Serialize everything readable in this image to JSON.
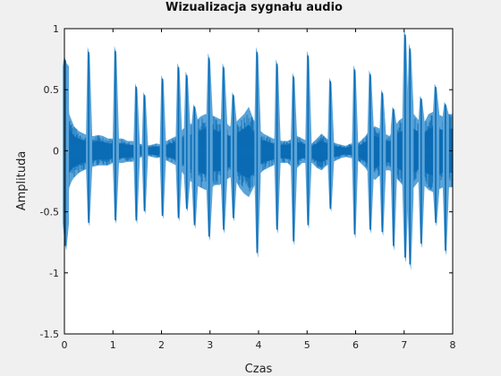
{
  "chart_data": {
    "type": "line",
    "title": "Wizualizacja sygnału audio",
    "xlabel": "Czas",
    "ylabel": "Amplituda",
    "xlim": [
      0,
      8
    ],
    "ylim": [
      -1.5,
      1
    ],
    "x_ticks": [
      "0",
      "1",
      "2",
      "3",
      "4",
      "5",
      "6",
      "7",
      "8"
    ],
    "y_ticks": [
      "1",
      "0.5",
      "0",
      "-0.5",
      "-1",
      "-1.5"
    ],
    "grid": false,
    "legend": "none",
    "colors": {
      "plot_background": "#ffffff",
      "page_background": "#f0f0f0",
      "signal_dark": "#0a6cb5",
      "signal_light": "#5aa3d8",
      "axes": "#000000"
    },
    "series": [
      {
        "envelope": {
          "x": [
            0.0,
            0.05,
            0.1,
            0.15,
            0.2,
            0.3,
            0.4,
            0.5,
            0.6,
            0.7,
            0.8,
            0.9,
            1.0,
            1.1,
            1.2,
            1.3,
            1.4,
            1.5,
            1.6,
            1.7,
            1.8,
            1.9,
            2.0,
            2.1,
            2.2,
            2.3,
            2.4,
            2.5,
            2.6,
            2.7,
            2.8,
            2.9,
            3.0,
            3.1,
            3.2,
            3.3,
            3.4,
            3.5,
            3.6,
            3.7,
            3.8,
            3.9,
            4.0,
            4.1,
            4.2,
            4.3,
            4.4,
            4.5,
            4.6,
            4.7,
            4.8,
            4.9,
            5.0,
            5.1,
            5.2,
            5.3,
            5.4,
            5.5,
            5.6,
            5.7,
            5.8,
            5.9,
            6.0,
            6.1,
            6.2,
            6.3,
            6.4,
            6.5,
            6.6,
            6.7,
            6.8,
            6.9,
            7.0,
            7.1,
            7.2,
            7.3,
            7.4,
            7.5,
            7.6,
            7.7,
            7.8,
            7.9,
            8.0
          ],
          "max": [
            0.75,
            0.6,
            0.3,
            0.25,
            0.2,
            0.16,
            0.14,
            0.12,
            0.12,
            0.13,
            0.12,
            0.1,
            0.1,
            0.1,
            0.1,
            0.08,
            0.08,
            0.07,
            0.05,
            0.04,
            0.05,
            0.06,
            0.05,
            0.08,
            0.1,
            0.12,
            0.16,
            0.2,
            0.22,
            0.24,
            0.28,
            0.3,
            0.3,
            0.28,
            0.26,
            0.25,
            0.2,
            0.22,
            0.26,
            0.3,
            0.36,
            0.25,
            0.18,
            0.14,
            0.12,
            0.1,
            0.09,
            0.08,
            0.08,
            0.1,
            0.12,
            0.1,
            0.08,
            0.06,
            0.1,
            0.14,
            0.1,
            0.08,
            0.06,
            0.05,
            0.04,
            0.06,
            0.05,
            0.08,
            0.12,
            0.18,
            0.2,
            0.18,
            0.14,
            0.12,
            0.2,
            0.25,
            0.28,
            0.35,
            0.3,
            0.25,
            0.22,
            0.3,
            0.32,
            0.3,
            0.28,
            0.3,
            0.3
          ],
          "min": [
            -0.65,
            -0.5,
            -0.3,
            -0.25,
            -0.22,
            -0.18,
            -0.16,
            -0.14,
            -0.13,
            -0.12,
            -0.12,
            -0.12,
            -0.1,
            -0.1,
            -0.1,
            -0.09,
            -0.09,
            -0.07,
            -0.05,
            -0.04,
            -0.05,
            -0.06,
            -0.05,
            -0.08,
            -0.1,
            -0.12,
            -0.16,
            -0.22,
            -0.25,
            -0.28,
            -0.3,
            -0.32,
            -0.32,
            -0.28,
            -0.28,
            -0.25,
            -0.22,
            -0.22,
            -0.3,
            -0.35,
            -0.38,
            -0.3,
            -0.2,
            -0.16,
            -0.14,
            -0.12,
            -0.1,
            -0.1,
            -0.1,
            -0.14,
            -0.14,
            -0.1,
            -0.1,
            -0.1,
            -0.14,
            -0.16,
            -0.12,
            -0.1,
            -0.08,
            -0.06,
            -0.05,
            -0.06,
            -0.06,
            -0.1,
            -0.14,
            -0.2,
            -0.24,
            -0.2,
            -0.16,
            -0.16,
            -0.2,
            -0.25,
            -0.3,
            -0.38,
            -0.3,
            -0.25,
            -0.28,
            -0.32,
            -0.34,
            -0.32,
            -0.3,
            -0.3,
            -0.3
          ]
        },
        "peaks": [
          {
            "x": 0.02,
            "max": 0.78,
            "min": -0.82
          },
          {
            "x": 0.5,
            "max": 0.85,
            "min": -0.62
          },
          {
            "x": 1.05,
            "max": 0.86,
            "min": -0.6
          },
          {
            "x": 1.48,
            "max": 0.55,
            "min": -0.6
          },
          {
            "x": 1.65,
            "max": 0.48,
            "min": -0.52
          },
          {
            "x": 2.02,
            "max": 0.62,
            "min": -0.56
          },
          {
            "x": 2.35,
            "max": 0.72,
            "min": -0.58
          },
          {
            "x": 2.52,
            "max": 0.65,
            "min": -0.5
          },
          {
            "x": 2.68,
            "max": 0.38,
            "min": -0.64
          },
          {
            "x": 2.98,
            "max": 0.8,
            "min": -0.74
          },
          {
            "x": 3.28,
            "max": 0.72,
            "min": -0.68
          },
          {
            "x": 3.48,
            "max": 0.48,
            "min": -0.58
          },
          {
            "x": 3.97,
            "max": 0.85,
            "min": -0.88
          },
          {
            "x": 4.38,
            "max": 0.75,
            "min": -0.68
          },
          {
            "x": 4.72,
            "max": 0.64,
            "min": -0.78
          },
          {
            "x": 5.02,
            "max": 0.82,
            "min": -0.64
          },
          {
            "x": 5.48,
            "max": 0.6,
            "min": -0.5
          },
          {
            "x": 5.98,
            "max": 0.7,
            "min": -0.72
          },
          {
            "x": 6.3,
            "max": 0.66,
            "min": -0.68
          },
          {
            "x": 6.55,
            "max": 0.5,
            "min": -0.7
          },
          {
            "x": 6.78,
            "max": 0.36,
            "min": -0.82
          },
          {
            "x": 7.02,
            "max": 1.0,
            "min": -0.92
          },
          {
            "x": 7.12,
            "max": 0.88,
            "min": -0.98
          },
          {
            "x": 7.35,
            "max": 0.45,
            "min": -0.8
          },
          {
            "x": 7.65,
            "max": 0.55,
            "min": -0.62
          },
          {
            "x": 7.85,
            "max": 0.4,
            "min": -0.86
          }
        ]
      }
    ]
  }
}
